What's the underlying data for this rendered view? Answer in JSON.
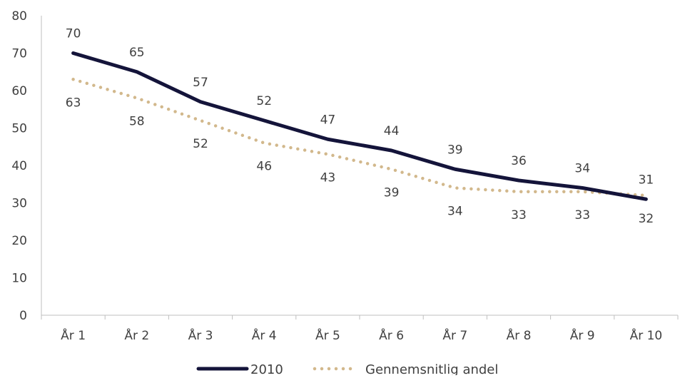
{
  "chart_data": {
    "type": "line",
    "categories": [
      "År 1",
      "År 2",
      "År 3",
      "År 4",
      "År 5",
      "År 6",
      "År 7",
      "År 8",
      "År 9",
      "År 10"
    ],
    "series": [
      {
        "name": "2010",
        "values": [
          70,
          65,
          57,
          52,
          47,
          44,
          39,
          36,
          34,
          31
        ],
        "color": "#14143a",
        "style": "solid"
      },
      {
        "name": "Gennemsnitlig andel",
        "values": [
          63,
          58,
          52,
          46,
          43,
          39,
          34,
          33,
          33,
          32
        ],
        "color": "#d2b88c",
        "style": "dotted"
      }
    ],
    "ylim": [
      0,
      80
    ],
    "yticks": [
      0,
      10,
      20,
      30,
      40,
      50,
      60,
      70,
      80
    ],
    "grid": false,
    "legend_position": "bottom"
  }
}
